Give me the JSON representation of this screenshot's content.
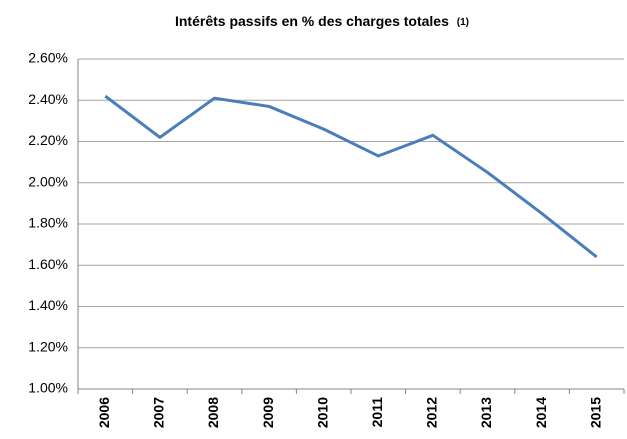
{
  "chart_data": {
    "type": "line",
    "title": "Intérêts passifs en % des charges totales",
    "title_note": "(1)",
    "categories": [
      "2006",
      "2007",
      "2008",
      "2009",
      "2010",
      "2011",
      "2012",
      "2013",
      "2014",
      "2015"
    ],
    "series": [
      {
        "name": "Intérêts passifs",
        "color": "#4a7ebb",
        "values": [
          2.42,
          2.22,
          2.41,
          2.37,
          2.26,
          2.13,
          2.23,
          2.05,
          1.85,
          1.64
        ]
      }
    ],
    "ylim": [
      1.0,
      2.6
    ],
    "yticks": [
      {
        "value": 1.0,
        "label": "1.00%"
      },
      {
        "value": 1.2,
        "label": "1.20%"
      },
      {
        "value": 1.4,
        "label": "1.40%"
      },
      {
        "value": 1.6,
        "label": "1.60%"
      },
      {
        "value": 1.8,
        "label": "1.80%"
      },
      {
        "value": 2.0,
        "label": "2.00%"
      },
      {
        "value": 2.2,
        "label": "2.20%"
      },
      {
        "value": 2.4,
        "label": "2.40%"
      },
      {
        "value": 2.6,
        "label": "2.60%"
      }
    ],
    "grid": true
  }
}
